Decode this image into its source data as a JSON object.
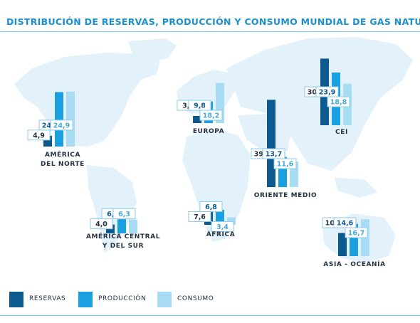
{
  "title": {
    "text": "DISTRIBUCIÓN DE RESERVAS, PRODUCCIÓN Y CONSUMO MUNDIAL DE GAS NATURAL",
    "unit": "(%)"
  },
  "colors": {
    "reservas": "#0d5a90",
    "produccion": "#1aa0e0",
    "consumo": "#a8dcf5",
    "map": "#e3f1fb",
    "label_border": "#8ecbe9"
  },
  "legend": [
    {
      "key": "reservas",
      "label": "RESERVAS"
    },
    {
      "key": "produccion",
      "label": "PRODUCCIÓN"
    },
    {
      "key": "consumo",
      "label": "CONSUMO"
    }
  ],
  "chart_data": {
    "type": "bar",
    "series": [
      {
        "name": "RESERVAS",
        "key": "reservas"
      },
      {
        "name": "PRODUCCIÓN",
        "key": "produccion"
      },
      {
        "name": "CONSUMO",
        "key": "consumo"
      }
    ],
    "unit": "%",
    "groups": [
      {
        "region": "AMÉRICA\nDEL NORTE",
        "values": {
          "reservas": 4.9,
          "produccion": 24.7,
          "consumo": 24.9
        },
        "labels": {
          "reservas": "4,9",
          "produccion": "24,7",
          "consumo": "24,9"
        }
      },
      {
        "region": "AMÉRICA CENTRAL\nY DEL SUR",
        "values": {
          "reservas": 4.0,
          "produccion": 6.5,
          "consumo": 6.3
        },
        "labels": {
          "reservas": "4,0",
          "produccion": "6,5",
          "consumo": "6,3"
        }
      },
      {
        "region": "EUROPA",
        "values": {
          "reservas": 3.1,
          "produccion": 9.8,
          "consumo": 18.2
        },
        "labels": {
          "reservas": "3,1",
          "produccion": "9,8",
          "consumo": "18,2"
        }
      },
      {
        "region": "ÁFRICA",
        "values": {
          "reservas": 7.6,
          "produccion": 6.8,
          "consumo": 3.4
        },
        "labels": {
          "reservas": "7,6",
          "produccion": "6,8",
          "consumo": "3,4"
        }
      },
      {
        "region": "ORIENTE MEDIO",
        "values": {
          "reservas": 39.6,
          "produccion": 13.7,
          "consumo": 11.6
        },
        "labels": {
          "reservas": "39,6",
          "produccion": "13,7",
          "consumo": "11,6"
        }
      },
      {
        "region": "CEI",
        "values": {
          "reservas": 30.2,
          "produccion": 23.9,
          "consumo": 18.8
        },
        "labels": {
          "reservas": "30,2",
          "produccion": "23,9",
          "consumo": "18,8"
        }
      },
      {
        "region": "ASIA - OCEANÍA",
        "values": {
          "reservas": 10.5,
          "produccion": 14.6,
          "consumo": 16.7
        },
        "labels": {
          "reservas": "10,5",
          "produccion": "14,6",
          "consumo": "16,7"
        }
      }
    ]
  }
}
